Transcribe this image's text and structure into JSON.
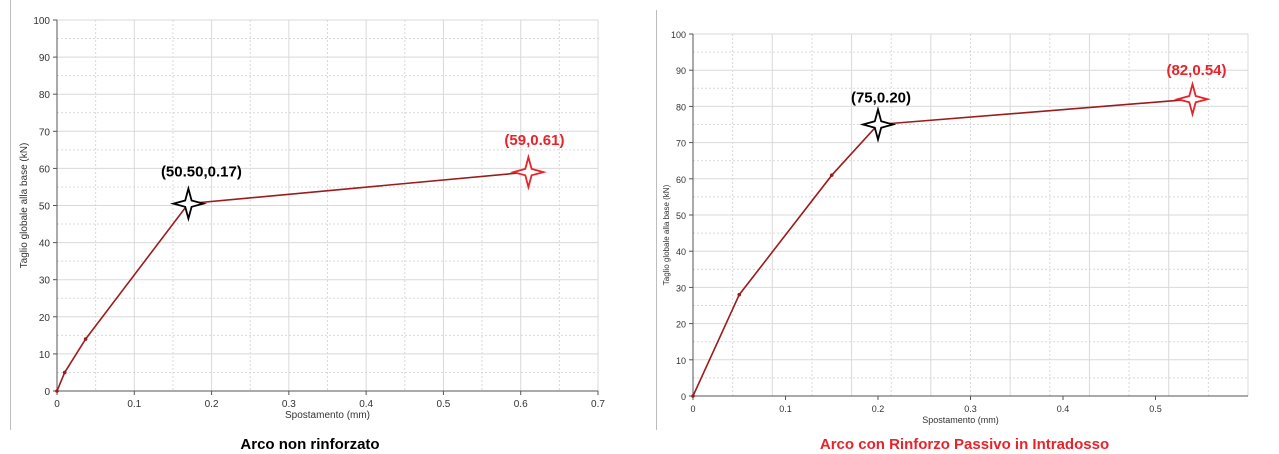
{
  "chart_data": [
    {
      "type": "line",
      "caption": "Arco non rinforzato",
      "xlabel": "Spostamento (mm)",
      "ylabel": "Taglio globale alla base (kN)",
      "xlim": [
        0,
        0.7
      ],
      "ylim": [
        0,
        100
      ],
      "xticks": [
        "0",
        "0.1",
        "0.2",
        "0.3",
        "0.4",
        "0.5",
        "0.6",
        "0.7"
      ],
      "yticks": [
        "0",
        "10",
        "20",
        "30",
        "40",
        "50",
        "60",
        "70",
        "80",
        "90",
        "100"
      ],
      "grid": true,
      "series": [
        {
          "x": [
            0,
            0.01,
            0.037,
            0.17,
            0.61
          ],
          "y": [
            0,
            5,
            14,
            50.5,
            59
          ]
        }
      ],
      "annotations": [
        {
          "text": "(50.50,0.17)",
          "x": 0.17,
          "y": 50.5,
          "color": "#000000"
        },
        {
          "text": "(59,0.61)",
          "x": 0.61,
          "y": 59,
          "color": "#e8232a"
        }
      ]
    },
    {
      "type": "line",
      "caption": "Arco con Rinforzo Passivo in Intradosso",
      "xlabel": "Spostamento (mm)",
      "ylabel": "Taglio globale alla base (kN)",
      "xlim": [
        0,
        0.6
      ],
      "ylim": [
        0,
        100
      ],
      "xticks": [
        "0",
        "0.1",
        "0.2",
        "0.3",
        "0.4",
        "0.5"
      ],
      "yticks": [
        "0",
        "10",
        "20",
        "30",
        "40",
        "50",
        "60",
        "70",
        "80",
        "90",
        "100"
      ],
      "grid": true,
      "series": [
        {
          "x": [
            0,
            0.05,
            0.15,
            0.2,
            0.54
          ],
          "y": [
            0,
            28,
            61,
            75,
            82
          ]
        }
      ],
      "annotations": [
        {
          "text": "(75,0.20)",
          "x": 0.2,
          "y": 75,
          "color": "#000000"
        },
        {
          "text": "(82,0.54)",
          "x": 0.54,
          "y": 82,
          "color": "#e8232a"
        }
      ]
    }
  ],
  "colors": {
    "line": "#9b1c1c",
    "grid": "#d9d9d9",
    "axis": "#555555",
    "highlight": "#e8232a"
  }
}
